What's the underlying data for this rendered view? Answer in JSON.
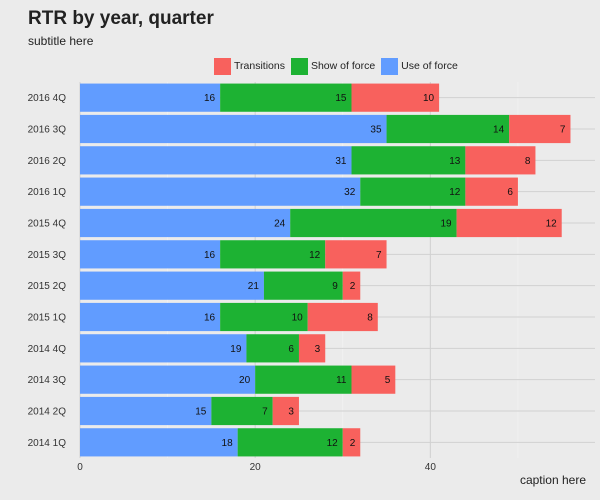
{
  "chart_data": {
    "type": "bar",
    "orientation": "horizontal",
    "stacked": true,
    "title": "RTR by year, quarter",
    "subtitle": "subtitle here",
    "caption": "caption here",
    "categories": [
      "2014 1Q",
      "2014 2Q",
      "2014 3Q",
      "2014 4Q",
      "2015 1Q",
      "2015 2Q",
      "2015 3Q",
      "2015 4Q",
      "2016 1Q",
      "2016 2Q",
      "2016 3Q",
      "2016 4Q"
    ],
    "series": [
      {
        "name": "Use of force",
        "color": "#619cff",
        "values": [
          18,
          15,
          20,
          19,
          16,
          21,
          16,
          24,
          32,
          31,
          35,
          16
        ]
      },
      {
        "name": "Show of force",
        "color": "#1db233",
        "values": [
          12,
          7,
          11,
          6,
          10,
          9,
          12,
          19,
          12,
          13,
          14,
          15
        ]
      },
      {
        "name": "Transitions",
        "color": "#f8615d",
        "values": [
          2,
          3,
          5,
          3,
          8,
          2,
          7,
          12,
          6,
          8,
          7,
          10
        ]
      }
    ],
    "legend_order": [
      "Transitions",
      "Show of force",
      "Use of force"
    ],
    "legend_position": "top",
    "xlim": [
      0,
      58.8
    ],
    "x_ticks": [
      0,
      20,
      40
    ],
    "grid": true
  }
}
